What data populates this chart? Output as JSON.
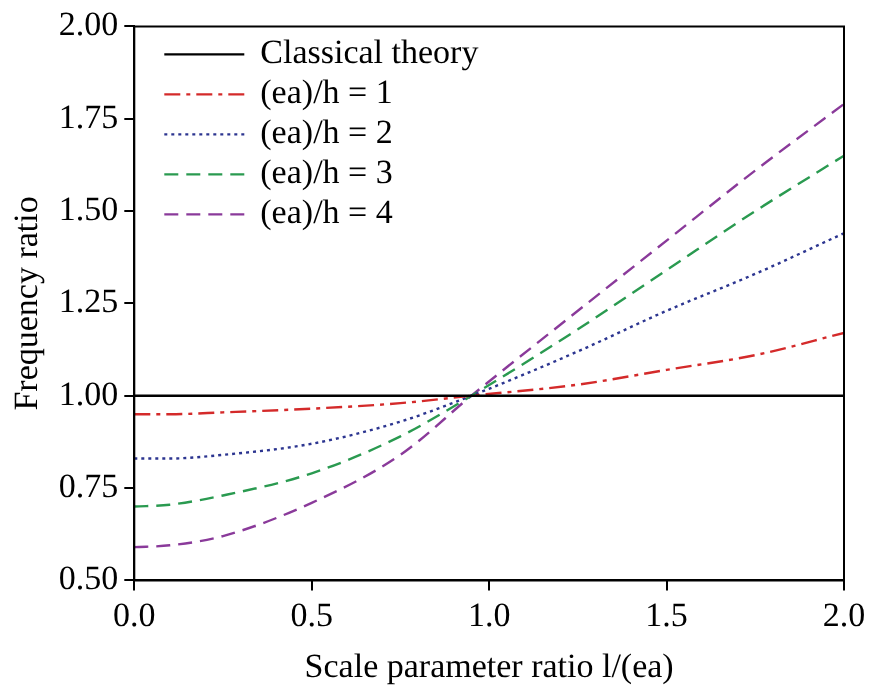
{
  "chart_data": {
    "type": "line",
    "xlabel": "Scale parameter ratio l/(ea)",
    "ylabel": "Frequency ratio",
    "x": [
      0,
      0.1,
      0.25,
      0.5,
      0.75,
      0.95,
      1.25,
      1.5,
      1.75,
      2.0
    ],
    "series": [
      {
        "name": "Classical theory",
        "color": "#000000",
        "line_style": "solid",
        "values": [
          1,
          1,
          1,
          1,
          1,
          1,
          1,
          1,
          1,
          1
        ]
      },
      {
        "name": "(ea)/h = 1",
        "color": "#d42a2a",
        "line_style": "dashdot",
        "values": [
          0.95,
          0.95,
          0.955,
          0.965,
          0.98,
          1.0,
          1.03,
          1.07,
          1.11,
          1.17
        ]
      },
      {
        "name": "(ea)/h = 2",
        "color": "#2c3590",
        "line_style": "dotted",
        "values": [
          0.83,
          0.83,
          0.84,
          0.87,
          0.93,
          1.0,
          1.12,
          1.23,
          1.33,
          1.44
        ]
      },
      {
        "name": "(ea)/h = 3",
        "color": "#2a9a50",
        "line_style": "dashed",
        "values": [
          0.7,
          0.705,
          0.73,
          0.79,
          0.89,
          1.0,
          1.18,
          1.34,
          1.5,
          1.65
        ]
      },
      {
        "name": "(ea)/h = 4",
        "color": "#8a3a9a",
        "line_style": "dashed",
        "values": [
          0.59,
          0.595,
          0.62,
          0.71,
          0.84,
          1.0,
          1.23,
          1.42,
          1.61,
          1.79
        ]
      }
    ],
    "xlim": [
      0,
      2
    ],
    "xticks": [
      {
        "value": 0,
        "label": "0.0"
      },
      {
        "value": 0.5,
        "label": "0.5"
      },
      {
        "value": 1,
        "label": "1.0"
      },
      {
        "value": 1.5,
        "label": "1.5"
      },
      {
        "value": 2,
        "label": "2.0"
      }
    ],
    "ylim": [
      0.5,
      2
    ],
    "yticks": [
      {
        "value": 0.5,
        "label": "0.50"
      },
      {
        "value": 0.75,
        "label": "0.75"
      },
      {
        "value": 1,
        "label": "1.00"
      },
      {
        "value": 1.25,
        "label": "1.25"
      },
      {
        "value": 1.5,
        "label": "1.50"
      },
      {
        "value": 1.75,
        "label": "1.75"
      },
      {
        "value": 2,
        "label": "2.00"
      }
    ],
    "grid": false,
    "legend": "top left",
    "marker": "none"
  }
}
